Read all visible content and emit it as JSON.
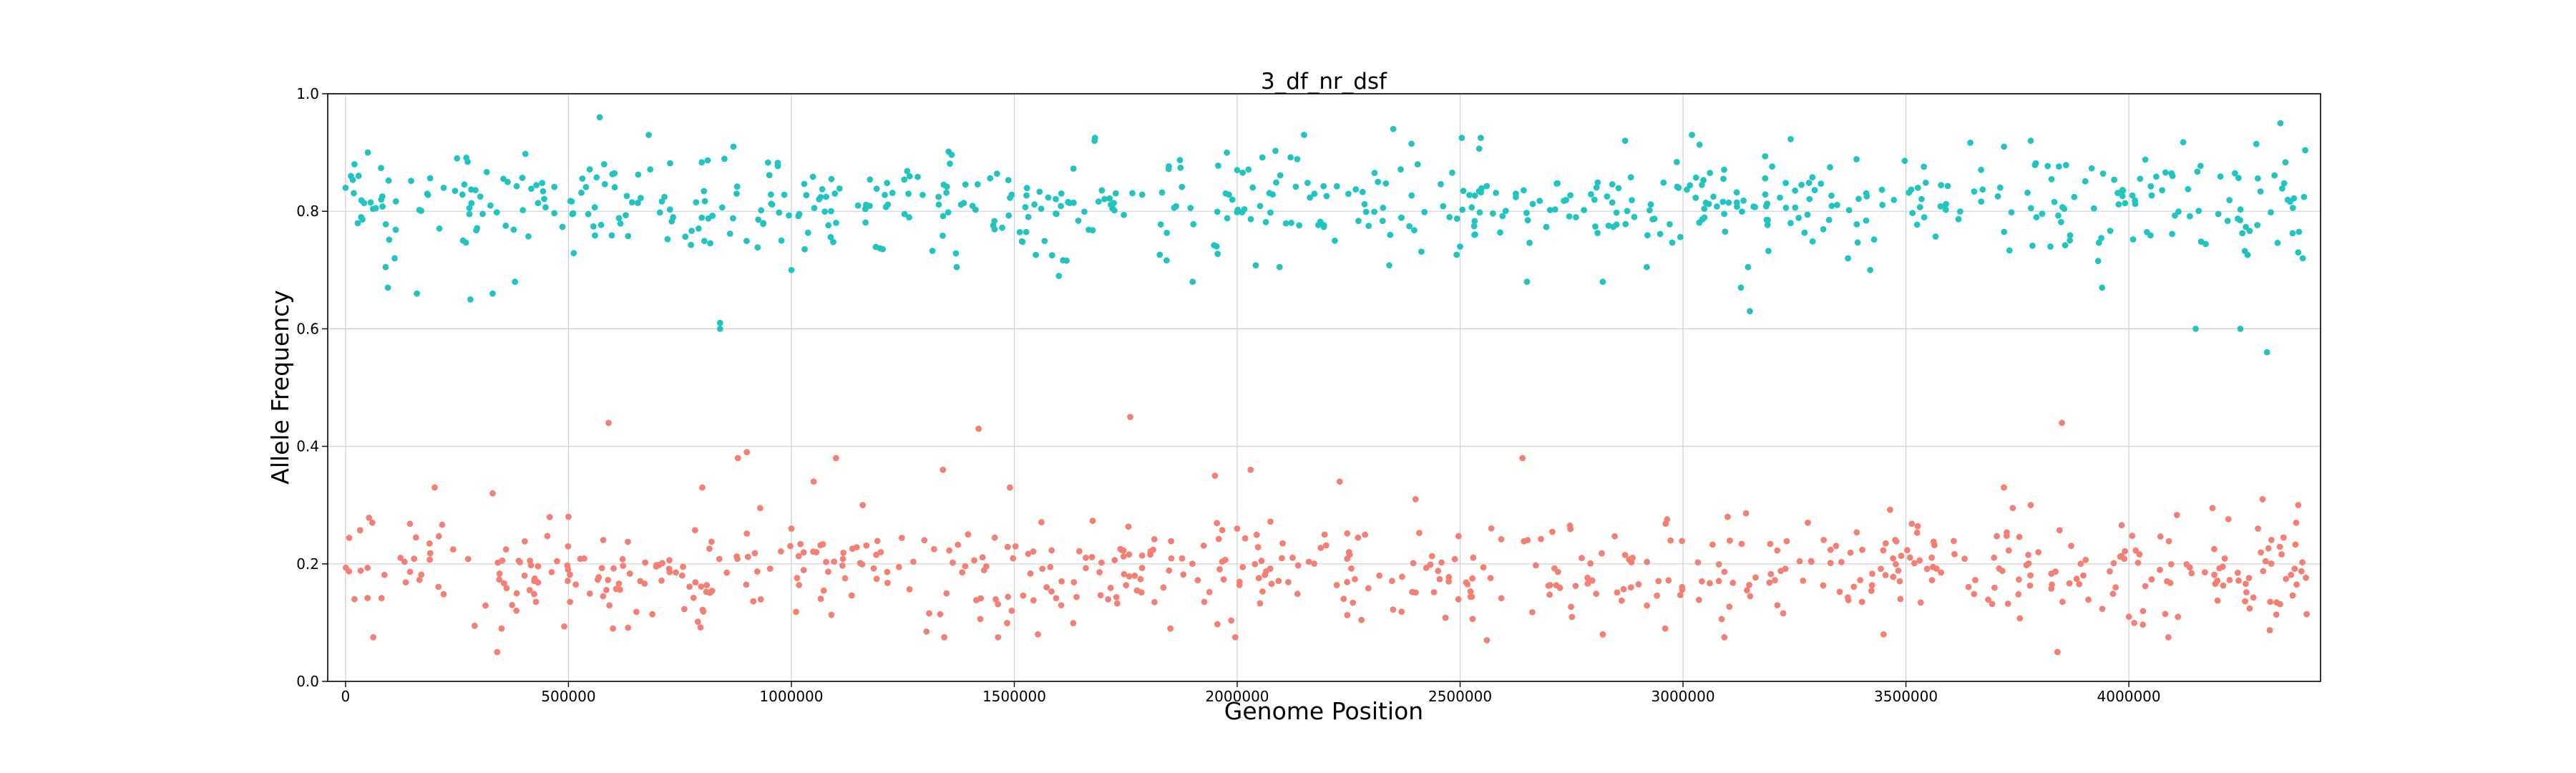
{
  "chart_data": {
    "type": "scatter",
    "title": "3_df_nr_dsf",
    "xlabel": "Genome Position",
    "ylabel": "Allele Frequency",
    "xlim": [
      -40000,
      4430000
    ],
    "ylim": [
      0.0,
      1.0
    ],
    "x_ticks": [
      0,
      500000,
      1000000,
      1500000,
      2000000,
      2500000,
      3000000,
      3500000,
      4000000
    ],
    "x_tick_labels": [
      "0",
      "500000",
      "1000000",
      "1500000",
      "2000000",
      "2500000",
      "3000000",
      "3500000",
      "4000000"
    ],
    "y_ticks": [
      0.0,
      0.2,
      0.4,
      0.6,
      0.8,
      1.0
    ],
    "y_tick_labels": [
      "0.0",
      "0.2",
      "0.4",
      "0.6",
      "0.8",
      "1.0"
    ],
    "grid": true,
    "colors": {
      "high": "#20c5c2",
      "low": "#f47f72",
      "grid": "#d0d0d0"
    },
    "series": [
      {
        "color": "#20c5c2",
        "x_start": 0,
        "x_end": 4400000,
        "count": 620,
        "center": 0.815,
        "spread": 0.05,
        "points": [
          [
            0,
            0.84
          ],
          [
            12000,
            0.86
          ],
          [
            20000,
            0.88
          ],
          [
            35000,
            0.79
          ],
          [
            50000,
            0.9
          ],
          [
            80000,
            0.82
          ],
          [
            95000,
            0.67
          ],
          [
            110000,
            0.72
          ],
          [
            160000,
            0.66
          ],
          [
            220000,
            0.84
          ],
          [
            250000,
            0.89
          ],
          [
            280000,
            0.65
          ],
          [
            330000,
            0.66
          ],
          [
            380000,
            0.68
          ],
          [
            570000,
            0.96
          ],
          [
            580000,
            0.88
          ],
          [
            680000,
            0.93
          ],
          [
            840000,
            0.61
          ],
          [
            840000,
            0.6
          ],
          [
            870000,
            0.91
          ],
          [
            1000000,
            0.7
          ],
          [
            1600000,
            0.69
          ],
          [
            1680000,
            0.92
          ],
          [
            1900000,
            0.68
          ],
          [
            2000000,
            0.87
          ],
          [
            2150000,
            0.93
          ],
          [
            2350000,
            0.94
          ],
          [
            2500000,
            0.74
          ],
          [
            2650000,
            0.68
          ],
          [
            2820000,
            0.68
          ],
          [
            2870000,
            0.92
          ],
          [
            3020000,
            0.93
          ],
          [
            3130000,
            0.67
          ],
          [
            3150000,
            0.63
          ],
          [
            3370000,
            0.72
          ],
          [
            3420000,
            0.7
          ],
          [
            3720000,
            0.91
          ],
          [
            3780000,
            0.92
          ],
          [
            3940000,
            0.67
          ],
          [
            4150000,
            0.6
          ],
          [
            4250000,
            0.6
          ],
          [
            4310000,
            0.56
          ],
          [
            4340000,
            0.95
          ],
          [
            4380000,
            0.73
          ],
          [
            4390000,
            0.72
          ]
        ]
      },
      {
        "color": "#f47f72",
        "x_start": 0,
        "x_end": 4400000,
        "count": 600,
        "center": 0.185,
        "spread": 0.05,
        "points": [
          [
            20000,
            0.14
          ],
          [
            60000,
            0.27
          ],
          [
            200000,
            0.33
          ],
          [
            330000,
            0.32
          ],
          [
            340000,
            0.05
          ],
          [
            350000,
            0.09
          ],
          [
            500000,
            0.28
          ],
          [
            590000,
            0.44
          ],
          [
            600000,
            0.09
          ],
          [
            800000,
            0.33
          ],
          [
            880000,
            0.38
          ],
          [
            900000,
            0.39
          ],
          [
            1000000,
            0.26
          ],
          [
            1050000,
            0.34
          ],
          [
            1100000,
            0.38
          ],
          [
            1160000,
            0.3
          ],
          [
            1340000,
            0.36
          ],
          [
            1420000,
            0.43
          ],
          [
            1490000,
            0.33
          ],
          [
            1760000,
            0.45
          ],
          [
            1850000,
            0.09
          ],
          [
            1950000,
            0.35
          ],
          [
            2000000,
            0.26
          ],
          [
            2030000,
            0.36
          ],
          [
            2230000,
            0.34
          ],
          [
            2400000,
            0.31
          ],
          [
            2560000,
            0.07
          ],
          [
            2640000,
            0.38
          ],
          [
            2820000,
            0.08
          ],
          [
            2960000,
            0.09
          ],
          [
            3100000,
            0.28
          ],
          [
            3280000,
            0.27
          ],
          [
            3450000,
            0.08
          ],
          [
            3720000,
            0.33
          ],
          [
            3780000,
            0.3
          ],
          [
            3840000,
            0.05
          ],
          [
            3850000,
            0.44
          ],
          [
            4000000,
            0.11
          ],
          [
            4300000,
            0.31
          ],
          [
            4380000,
            0.3
          ]
        ]
      }
    ]
  }
}
